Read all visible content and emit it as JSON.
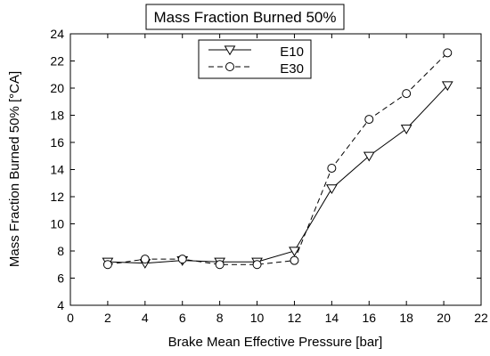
{
  "chart_data": {
    "type": "line",
    "title": "Mass Fraction Burned 50%",
    "xlabel": "Brake Mean Effective Pressure [bar]",
    "ylabel": "Mass Fraction Burned 50% [°CA]",
    "xlim": [
      0,
      22
    ],
    "ylim": [
      4,
      24
    ],
    "xticks": [
      0,
      2,
      4,
      6,
      8,
      10,
      12,
      14,
      16,
      18,
      20,
      22
    ],
    "yticks": [
      4,
      6,
      8,
      10,
      12,
      14,
      16,
      18,
      20,
      22,
      24
    ],
    "grid": false,
    "legend_position": "top-center",
    "series": [
      {
        "name": "E10",
        "marker": "triangle-down",
        "line_style": "solid",
        "color": "#000000",
        "x": [
          2,
          4,
          6,
          8,
          10,
          12,
          14,
          16,
          18,
          20.2
        ],
        "y": [
          7.2,
          7.1,
          7.3,
          7.2,
          7.2,
          8.0,
          12.6,
          15.0,
          17.0,
          20.2
        ]
      },
      {
        "name": "E30",
        "marker": "circle",
        "line_style": "dashed",
        "color": "#000000",
        "x": [
          2,
          4,
          6,
          8,
          10,
          12,
          14,
          16,
          18,
          20.2
        ],
        "y": [
          7.0,
          7.4,
          7.4,
          7.0,
          7.0,
          7.3,
          14.1,
          17.7,
          19.6,
          22.6
        ]
      }
    ]
  }
}
